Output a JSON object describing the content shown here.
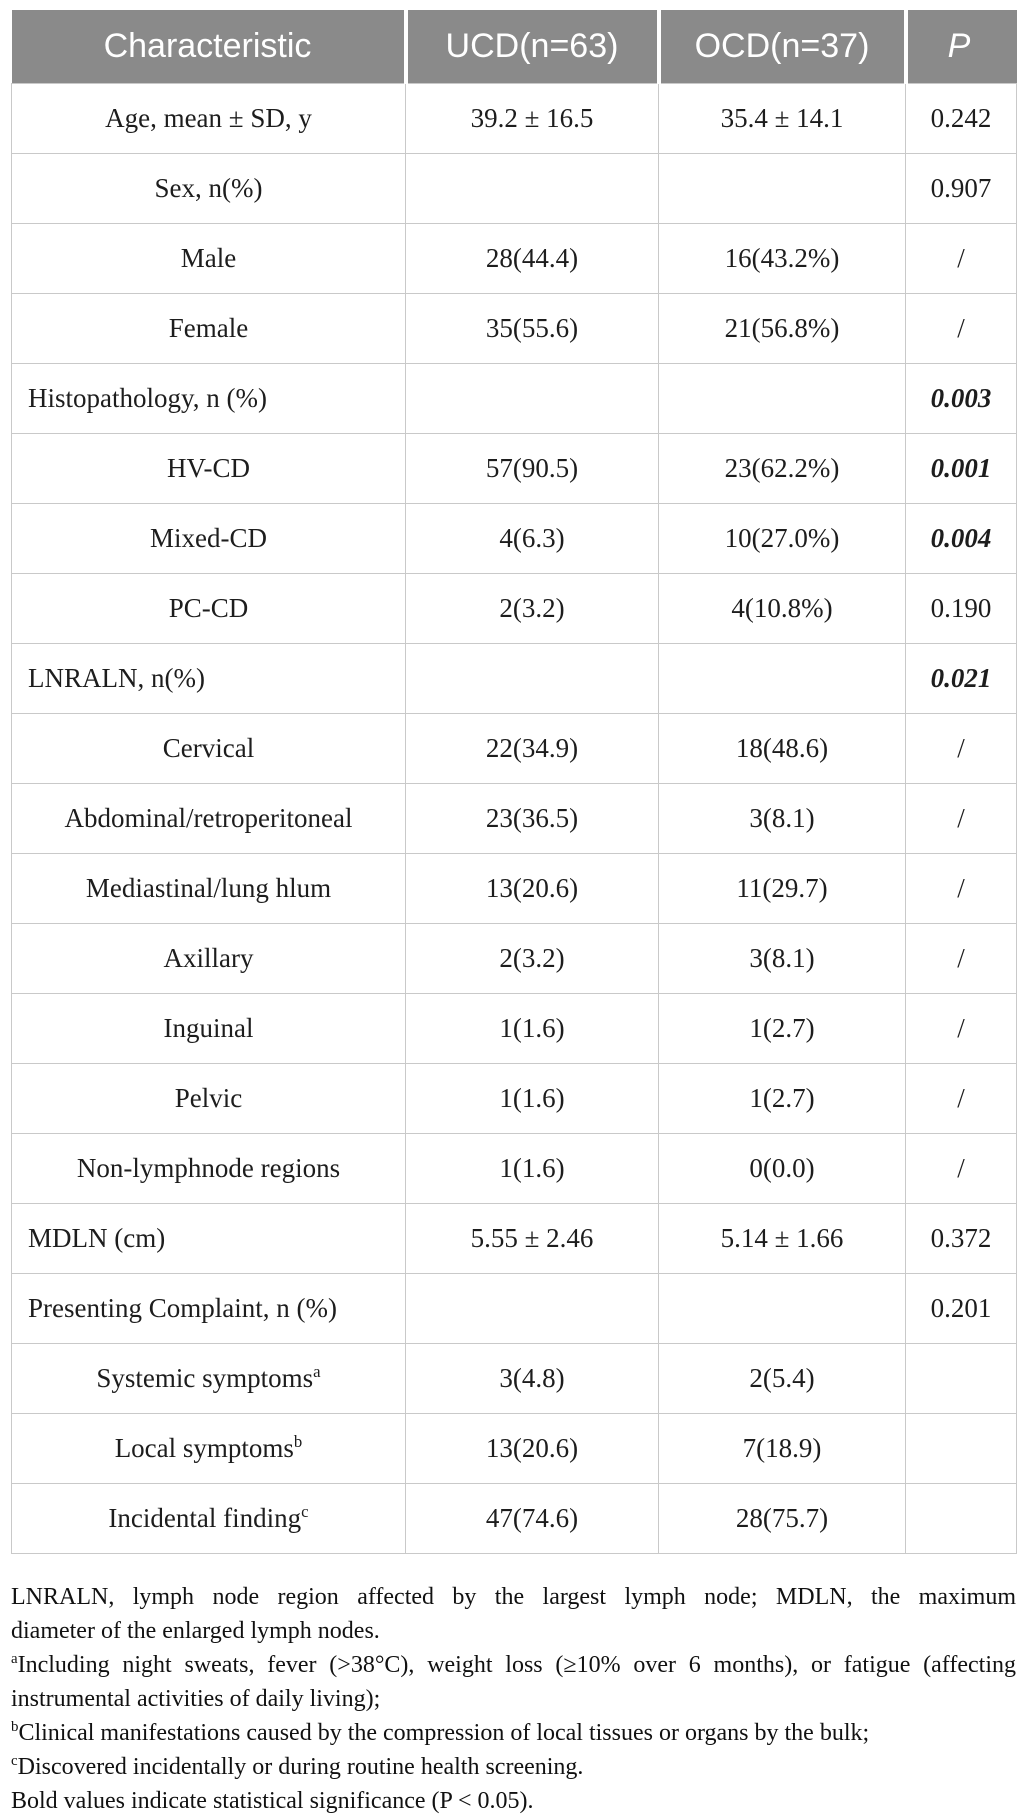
{
  "table": {
    "columns": [
      "Characteristic",
      "UCD(n=63)",
      "OCD(n=37)",
      "P"
    ],
    "rows": [
      {
        "label": "Age, mean ± SD, y",
        "sup": "",
        "ucd": "39.2 ± 16.5",
        "ocd": "35.4 ± 14.1",
        "p": "0.242",
        "align": "center",
        "sig": false
      },
      {
        "label": "Sex, n(%)",
        "sup": "",
        "ucd": "",
        "ocd": "",
        "p": "0.907",
        "align": "center",
        "sig": false
      },
      {
        "label": "Male",
        "sup": "",
        "ucd": "28(44.4)",
        "ocd": "16(43.2%)",
        "p": "/",
        "align": "center",
        "sig": false
      },
      {
        "label": "Female",
        "sup": "",
        "ucd": "35(55.6)",
        "ocd": "21(56.8%)",
        "p": "/",
        "align": "center",
        "sig": false
      },
      {
        "label": "Histopathology, n (%)",
        "sup": "",
        "ucd": "",
        "ocd": "",
        "p": "0.003",
        "align": "left",
        "sig": true
      },
      {
        "label": "HV-CD",
        "sup": "",
        "ucd": "57(90.5)",
        "ocd": "23(62.2%)",
        "p": "0.001",
        "align": "center",
        "sig": true
      },
      {
        "label": "Mixed-CD",
        "sup": "",
        "ucd": "4(6.3)",
        "ocd": "10(27.0%)",
        "p": "0.004",
        "align": "center",
        "sig": true
      },
      {
        "label": "PC-CD",
        "sup": "",
        "ucd": "2(3.2)",
        "ocd": "4(10.8%)",
        "p": "0.190",
        "align": "center",
        "sig": false
      },
      {
        "label": "LNRALN, n(%)",
        "sup": "",
        "ucd": "",
        "ocd": "",
        "p": "0.021",
        "align": "left",
        "sig": true
      },
      {
        "label": "Cervical",
        "sup": "",
        "ucd": "22(34.9)",
        "ocd": "18(48.6)",
        "p": "/",
        "align": "center",
        "sig": false
      },
      {
        "label": "Abdominal/retroperitoneal",
        "sup": "",
        "ucd": "23(36.5)",
        "ocd": "3(8.1)",
        "p": "/",
        "align": "center",
        "sig": false
      },
      {
        "label": "Mediastinal/lung hlum",
        "sup": "",
        "ucd": "13(20.6)",
        "ocd": "11(29.7)",
        "p": "/",
        "align": "center",
        "sig": false
      },
      {
        "label": "Axillary",
        "sup": "",
        "ucd": "2(3.2)",
        "ocd": "3(8.1)",
        "p": "/",
        "align": "center",
        "sig": false
      },
      {
        "label": "Inguinal",
        "sup": "",
        "ucd": "1(1.6)",
        "ocd": "1(2.7)",
        "p": "/",
        "align": "center",
        "sig": false
      },
      {
        "label": "Pelvic",
        "sup": "",
        "ucd": "1(1.6)",
        "ocd": "1(2.7)",
        "p": "/",
        "align": "center",
        "sig": false
      },
      {
        "label": "Non-lymphnode regions",
        "sup": "",
        "ucd": "1(1.6)",
        "ocd": "0(0.0)",
        "p": "/",
        "align": "center",
        "sig": false
      },
      {
        "label": "MDLN (cm)",
        "sup": "",
        "ucd": "5.55 ± 2.46",
        "ocd": "5.14 ± 1.66",
        "p": "0.372",
        "align": "left",
        "sig": false
      },
      {
        "label": "Presenting Complaint, n (%)",
        "sup": "",
        "ucd": "",
        "ocd": "",
        "p": "0.201",
        "align": "left",
        "sig": false
      },
      {
        "label": "Systemic symptoms",
        "sup": "a",
        "ucd": "3(4.8)",
        "ocd": "2(5.4)",
        "p": "",
        "align": "center",
        "sig": false
      },
      {
        "label": "Local symptoms",
        "sup": "b",
        "ucd": "13(20.6)",
        "ocd": "7(18.9)",
        "p": "",
        "align": "center",
        "sig": false
      },
      {
        "label": "Incidental finding",
        "sup": "c",
        "ucd": "47(74.6)",
        "ocd": "28(75.7)",
        "p": "",
        "align": "center",
        "sig": false
      }
    ]
  },
  "footnotes": {
    "lines": [
      {
        "sup": "",
        "text": "LNRALN, lymph node region affected by the largest lymph node; MDLN, the maximum",
        "justify": true
      },
      {
        "sup": "",
        "text": "diameter of the enlarged lymph nodes.",
        "justify": false
      },
      {
        "sup": "a",
        "text": "Including night sweats, fever (>38°C), weight loss (≥10% over 6 months), or fatigue (affecting",
        "justify": true
      },
      {
        "sup": "",
        "text": "instrumental activities of daily living);",
        "justify": false
      },
      {
        "sup": "b",
        "text": "Clinical manifestations caused by the compression of local tissues or organs by the bulk;",
        "justify": false
      },
      {
        "sup": "c",
        "text": "Discovered incidentally or during routine health screening.",
        "justify": false
      },
      {
        "sup": "",
        "text": "Bold values indicate statistical significance (P < 0.05).",
        "justify": false
      }
    ]
  },
  "colors": {
    "header_bg": "#8a8a8a",
    "header_text": "#ffffff",
    "grid_line": "#c9c9c9",
    "body_text": "#1d1d1d"
  }
}
